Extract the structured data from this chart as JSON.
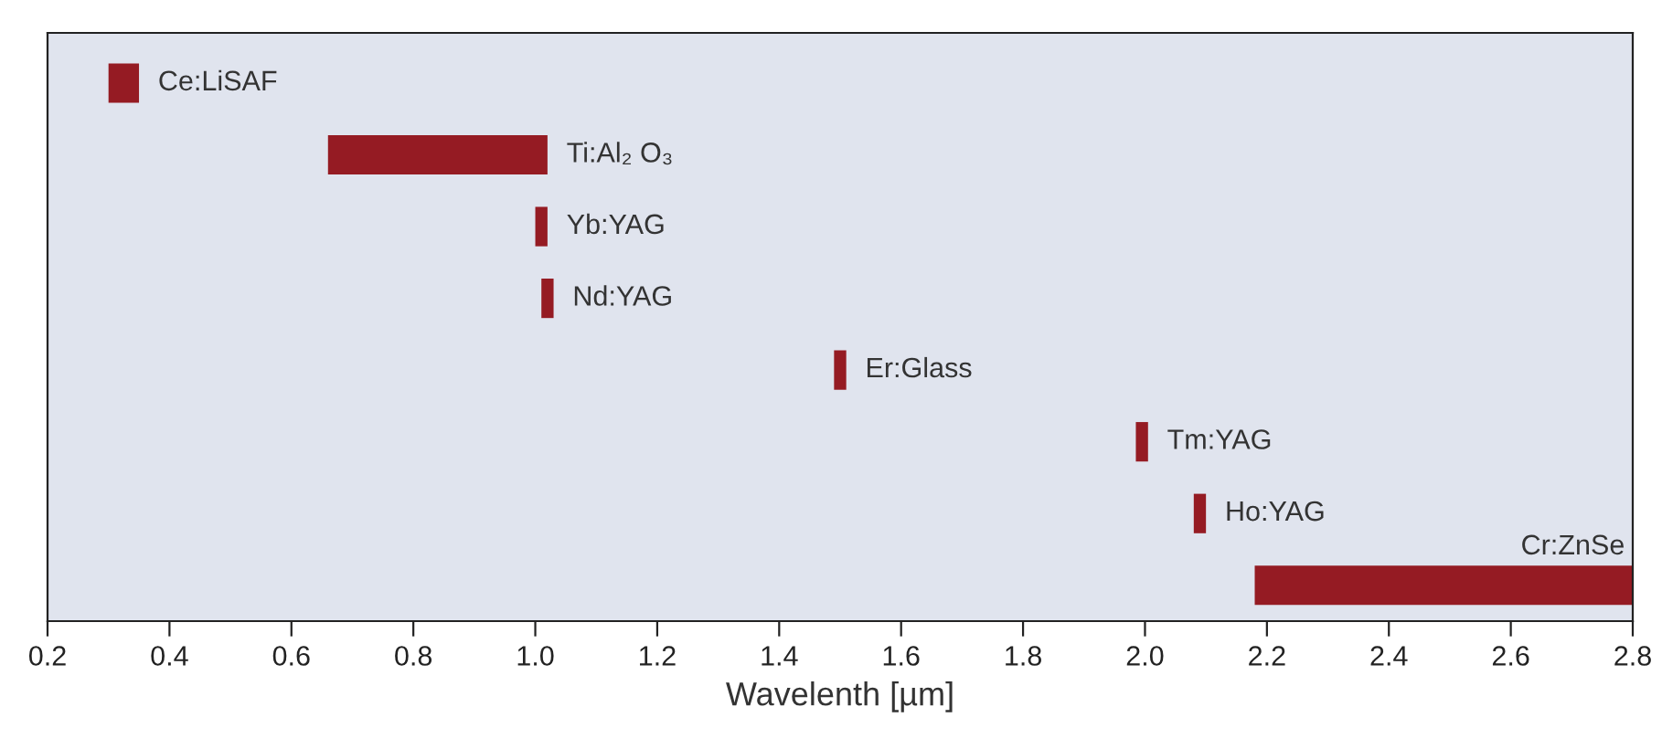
{
  "chart_data": {
    "type": "bar",
    "orientation": "horizontal",
    "xlabel": "Wavelenth [µm]",
    "categories": [
      "Ce:LiSAF",
      "Ti:Al₂ O₃",
      "Yb:YAG",
      "Nd:YAG",
      "Er:Glass",
      "Tm:YAG",
      "Ho:YAG",
      "Cr:ZnSe"
    ],
    "base": [
      0.3,
      0.66,
      1.0,
      1.01,
      1.49,
      1.985,
      2.08,
      2.18
    ],
    "values": [
      0.05,
      0.36,
      0.02,
      0.02,
      0.02,
      0.02,
      0.02,
      0.62
    ],
    "color": "#951b23",
    "xlim": [
      0.2,
      2.8
    ],
    "xticks": [
      {
        "value": 0.2,
        "label": "0.2"
      },
      {
        "value": 0.4,
        "label": "0.4"
      },
      {
        "value": 0.6,
        "label": "0.6"
      },
      {
        "value": 0.8,
        "label": "0.8"
      },
      {
        "value": 1.0,
        "label": "1.0"
      },
      {
        "value": 1.2,
        "label": "1.2"
      },
      {
        "value": 1.4,
        "label": "1.4"
      },
      {
        "value": 1.6,
        "label": "1.6"
      },
      {
        "value": 1.8,
        "label": "1.8"
      },
      {
        "value": 2.0,
        "label": "2.0"
      },
      {
        "value": 2.2,
        "label": "2.2"
      },
      {
        "value": 2.4,
        "label": "2.4"
      },
      {
        "value": 2.6,
        "label": "2.6"
      },
      {
        "value": 2.8,
        "label": "2.8"
      }
    ],
    "tick_labels": "x",
    "grid": false
  }
}
